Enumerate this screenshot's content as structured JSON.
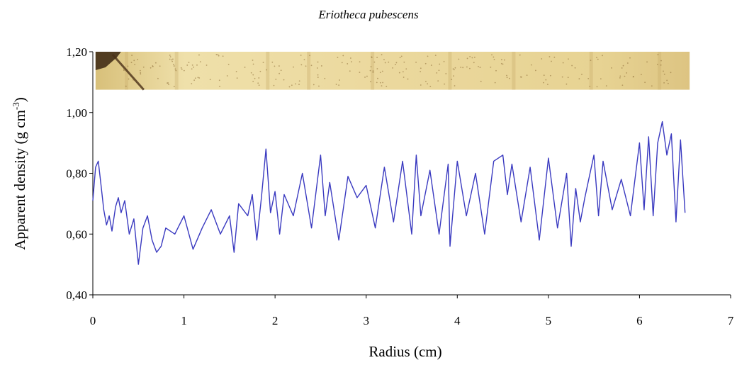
{
  "chart_data": {
    "type": "line",
    "title": "Eriotheca pubescens",
    "xlabel": "Radius (cm)",
    "ylabel": "Apparent density (g cm",
    "ylabel_superscript": "-3",
    "ylabel_suffix": ")",
    "xlim": [
      0,
      7
    ],
    "ylim": [
      0.4,
      1.2
    ],
    "x_ticks": [
      0,
      1,
      2,
      3,
      4,
      5,
      6,
      7
    ],
    "x_tick_labels": [
      "0",
      "1",
      "2",
      "3",
      "4",
      "5",
      "6",
      "7"
    ],
    "y_ticks": [
      0.4,
      0.6,
      0.8,
      1.0,
      1.2
    ],
    "y_tick_labels": [
      "0,40",
      "0,60",
      "0,80",
      "1,00",
      "1,20"
    ],
    "grid": false,
    "legend": "none",
    "line_color": "#3a3ac0",
    "wood_strip": {
      "y_range": [
        1.075,
        1.2
      ],
      "x_range": [
        0.03,
        6.55
      ],
      "base_color": "#e9d79a"
    },
    "series": [
      {
        "x": [
          0.0,
          0.03,
          0.06,
          0.09,
          0.12,
          0.15,
          0.18,
          0.21,
          0.25,
          0.28,
          0.31,
          0.35,
          0.4,
          0.45,
          0.5,
          0.55,
          0.6,
          0.65,
          0.7,
          0.75,
          0.8,
          0.9,
          1.0,
          1.1,
          1.2,
          1.3,
          1.4,
          1.5,
          1.55,
          1.6,
          1.7,
          1.75,
          1.8,
          1.85,
          1.9,
          1.95,
          2.0,
          2.05,
          2.1,
          2.2,
          2.3,
          2.4,
          2.5,
          2.55,
          2.6,
          2.7,
          2.8,
          2.9,
          3.0,
          3.1,
          3.2,
          3.3,
          3.4,
          3.5,
          3.55,
          3.6,
          3.7,
          3.8,
          3.9,
          3.92,
          4.0,
          4.1,
          4.2,
          4.3,
          4.4,
          4.5,
          4.55,
          4.6,
          4.7,
          4.8,
          4.9,
          5.0,
          5.1,
          5.2,
          5.25,
          5.3,
          5.35,
          5.4,
          5.5,
          5.55,
          5.6,
          5.7,
          5.8,
          5.9,
          6.0,
          6.05,
          6.1,
          6.15,
          6.2,
          6.25,
          6.3,
          6.35,
          6.4,
          6.45,
          6.5
        ],
        "values": [
          0.71,
          0.82,
          0.84,
          0.76,
          0.68,
          0.63,
          0.66,
          0.61,
          0.69,
          0.72,
          0.67,
          0.71,
          0.6,
          0.65,
          0.5,
          0.62,
          0.66,
          0.58,
          0.54,
          0.56,
          0.62,
          0.6,
          0.66,
          0.55,
          0.62,
          0.68,
          0.6,
          0.66,
          0.54,
          0.7,
          0.66,
          0.73,
          0.58,
          0.72,
          0.88,
          0.67,
          0.74,
          0.6,
          0.73,
          0.66,
          0.8,
          0.62,
          0.86,
          0.66,
          0.77,
          0.58,
          0.79,
          0.72,
          0.76,
          0.62,
          0.82,
          0.64,
          0.84,
          0.6,
          0.86,
          0.66,
          0.81,
          0.6,
          0.83,
          0.56,
          0.84,
          0.66,
          0.8,
          0.6,
          0.84,
          0.86,
          0.73,
          0.83,
          0.64,
          0.82,
          0.58,
          0.85,
          0.62,
          0.8,
          0.56,
          0.75,
          0.64,
          0.72,
          0.86,
          0.66,
          0.84,
          0.68,
          0.78,
          0.66,
          0.9,
          0.68,
          0.92,
          0.66,
          0.9,
          0.97,
          0.86,
          0.93,
          0.64,
          0.91,
          0.67
        ]
      }
    ]
  }
}
